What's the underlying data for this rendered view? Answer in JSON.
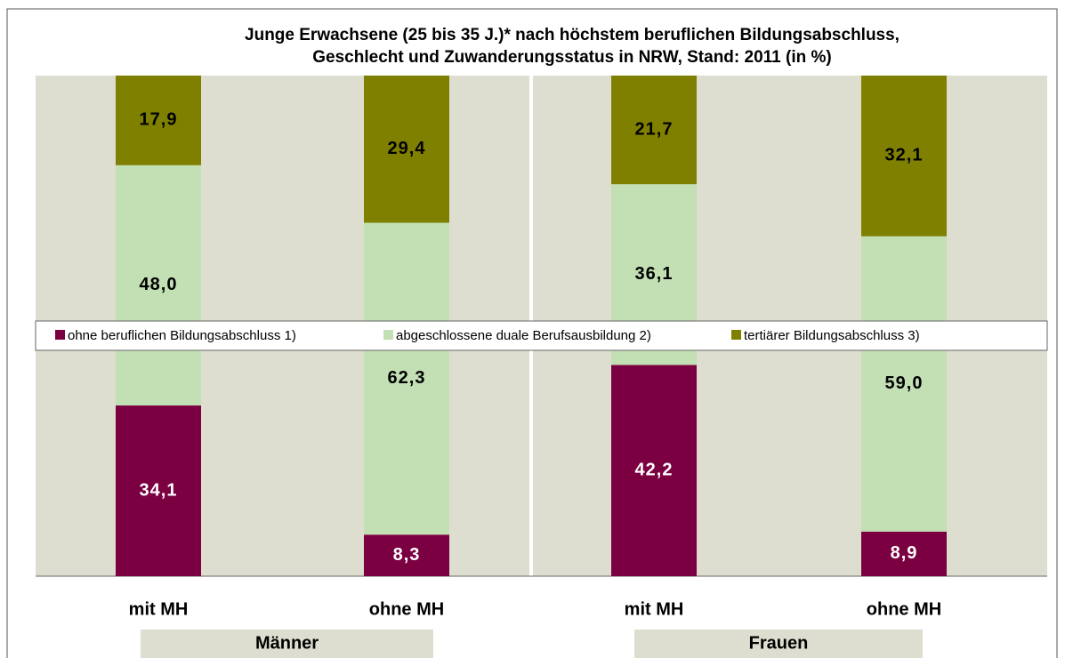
{
  "chart_data": {
    "type": "stacked_bar",
    "title": [
      "Junge Erwachsene (25 bis 35 J.)* nach höchstem beruflichen Bildungsabschluss,",
      "Geschlecht und Zuwanderungsstatus in NRW, Stand: 2011 (in %)"
    ],
    "categories": [
      "mit MH",
      "ohne MH",
      "mit MH",
      "ohne MH"
    ],
    "groups": [
      "Männer",
      "Frauen"
    ],
    "ylim": [
      0,
      100
    ],
    "series": [
      {
        "name": "ohne beruflichen Bildungsabschluss 1)",
        "color": "#7b0041",
        "label_color": "#ffffff",
        "values": [
          34.1,
          8.3,
          42.2,
          8.9
        ],
        "value_labels": [
          "34,1",
          "8,3",
          "42,2",
          "8,9"
        ]
      },
      {
        "name": "abgeschlossene duale Berufsausbildung 2)",
        "color": "#c2e0b4",
        "label_color": "#000000",
        "values": [
          48.0,
          62.3,
          36.1,
          59.0
        ],
        "value_labels": [
          "48,0",
          "62,3",
          "36,1",
          "59,0"
        ]
      },
      {
        "name": "tertiärer Bildungsabschluss 3)",
        "color": "#808000",
        "label_color": "#000000",
        "values": [
          17.9,
          29.4,
          21.7,
          32.1
        ],
        "value_labels": [
          "17,9",
          "29,4",
          "21,7",
          "32,1"
        ]
      }
    ]
  }
}
